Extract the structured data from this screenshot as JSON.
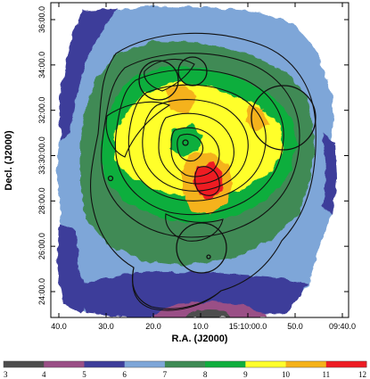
{
  "chart_data": {
    "type": "heatmap",
    "title": "",
    "xlabel": "R.A. (J2000)",
    "ylabel": "Decl. (J2000)",
    "x_ticks": [
      "40.0",
      "30.0",
      "20.0",
      "10.0",
      "15:10:00.0",
      "50.0",
      "09:40.0"
    ],
    "y_ticks": [
      "36:00.0",
      "34:00.0",
      "32:00.0",
      "33:30:00.0",
      "28:00.0",
      "26:00.0",
      "24:00.0"
    ],
    "colorbar": {
      "ticks": [
        "3",
        "4",
        "5",
        "6",
        "7",
        "8",
        "9",
        "10",
        "11",
        "12"
      ],
      "colors": [
        "#4d4d4d",
        "#9a4f86",
        "#3e3e9a",
        "#7ea6d8",
        "#3f8a55",
        "#0fae3e",
        "#ffff2c",
        "#f5b21a",
        "#ee1c24"
      ]
    },
    "map_levels": [
      {
        "level": 3,
        "color": "#4d4d4d"
      },
      {
        "level": 4,
        "color": "#9a4f86"
      },
      {
        "level": 5,
        "color": "#3e3e9a"
      },
      {
        "level": 6,
        "color": "#7ea6d8"
      },
      {
        "level": 7,
        "color": "#3f8a55"
      },
      {
        "level": 8,
        "color": "#0fae3e"
      },
      {
        "level": 9,
        "color": "#ffff2c"
      },
      {
        "level": 10,
        "color": "#f5b21a"
      },
      {
        "level": 11,
        "color": "#ee1c24"
      }
    ],
    "grid": false,
    "legend": "colorbar-bottom",
    "contour_color": "#111111",
    "frame_color": "#000000"
  }
}
